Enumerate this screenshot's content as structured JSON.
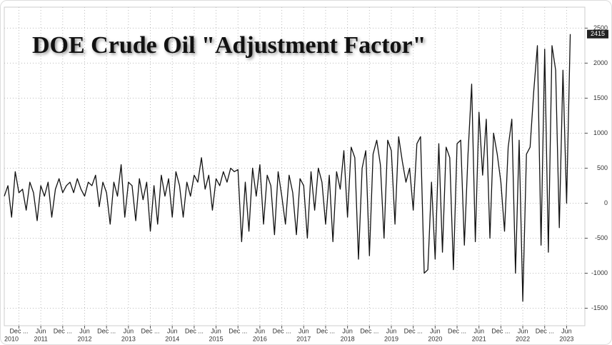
{
  "chart_data": {
    "type": "line",
    "title": "DOE Crude Oil \"Adjustment Factor\"",
    "x": [
      "2010-08",
      "2010-09",
      "2010-10",
      "2010-11",
      "2010-12",
      "2011-01",
      "2011-02",
      "2011-03",
      "2011-04",
      "2011-05",
      "2011-06",
      "2011-07",
      "2011-08",
      "2011-09",
      "2011-10",
      "2011-11",
      "2011-12",
      "2012-01",
      "2012-02",
      "2012-03",
      "2012-04",
      "2012-05",
      "2012-06",
      "2012-07",
      "2012-08",
      "2012-09",
      "2012-10",
      "2012-11",
      "2012-12",
      "2013-01",
      "2013-02",
      "2013-03",
      "2013-04",
      "2013-05",
      "2013-06",
      "2013-07",
      "2013-08",
      "2013-09",
      "2013-10",
      "2013-11",
      "2013-12",
      "2014-01",
      "2014-02",
      "2014-03",
      "2014-04",
      "2014-05",
      "2014-06",
      "2014-07",
      "2014-08",
      "2014-09",
      "2014-10",
      "2014-11",
      "2014-12",
      "2015-01",
      "2015-02",
      "2015-03",
      "2015-04",
      "2015-05",
      "2015-06",
      "2015-07",
      "2015-08",
      "2015-09",
      "2015-10",
      "2015-11",
      "2015-12",
      "2016-01",
      "2016-02",
      "2016-03",
      "2016-04",
      "2016-05",
      "2016-06",
      "2016-07",
      "2016-08",
      "2016-09",
      "2016-10",
      "2016-11",
      "2016-12",
      "2017-01",
      "2017-02",
      "2017-03",
      "2017-04",
      "2017-05",
      "2017-06",
      "2017-07",
      "2017-08",
      "2017-09",
      "2017-10",
      "2017-11",
      "2017-12",
      "2018-01",
      "2018-02",
      "2018-03",
      "2018-04",
      "2018-05",
      "2018-06",
      "2018-07",
      "2018-08",
      "2018-09",
      "2018-10",
      "2018-11",
      "2018-12",
      "2019-01",
      "2019-02",
      "2019-03",
      "2019-04",
      "2019-05",
      "2019-06",
      "2019-07",
      "2019-08",
      "2019-09",
      "2019-10",
      "2019-11",
      "2019-12",
      "2020-01",
      "2020-02",
      "2020-03",
      "2020-04",
      "2020-05",
      "2020-06",
      "2020-07",
      "2020-08",
      "2020-09",
      "2020-10",
      "2020-11",
      "2020-12",
      "2021-01",
      "2021-02",
      "2021-03",
      "2021-04",
      "2021-05",
      "2021-06",
      "2021-07",
      "2021-08",
      "2021-09",
      "2021-10",
      "2021-11",
      "2021-12",
      "2022-01",
      "2022-02",
      "2022-03",
      "2022-04",
      "2022-05",
      "2022-06",
      "2022-07",
      "2022-08",
      "2022-09",
      "2022-10",
      "2022-11",
      "2022-12",
      "2023-01",
      "2023-02",
      "2023-03",
      "2023-04",
      "2023-05",
      "2023-06",
      "2023-07"
    ],
    "values": [
      100,
      250,
      -200,
      450,
      150,
      200,
      -100,
      300,
      150,
      -250,
      250,
      100,
      300,
      -200,
      200,
      350,
      150,
      250,
      300,
      150,
      350,
      200,
      100,
      300,
      250,
      400,
      -50,
      300,
      150,
      -300,
      300,
      100,
      550,
      -200,
      300,
      250,
      -250,
      350,
      50,
      300,
      -400,
      250,
      -300,
      400,
      100,
      350,
      -200,
      450,
      250,
      -200,
      300,
      100,
      400,
      300,
      650,
      200,
      400,
      -100,
      350,
      250,
      450,
      300,
      500,
      450,
      480,
      -550,
      300,
      -400,
      500,
      100,
      550,
      -300,
      400,
      250,
      -450,
      450,
      100,
      -300,
      400,
      150,
      -450,
      350,
      250,
      -500,
      450,
      -100,
      500,
      300,
      -300,
      400,
      -550,
      450,
      200,
      750,
      -200,
      800,
      650,
      -800,
      500,
      750,
      -750,
      700,
      900,
      550,
      -500,
      900,
      750,
      -300,
      950,
      600,
      300,
      500,
      -100,
      850,
      950,
      -1000,
      -950,
      300,
      -800,
      850,
      -700,
      800,
      650,
      -950,
      850,
      900,
      -600,
      700,
      1700,
      -550,
      1300,
      400,
      1200,
      -500,
      1000,
      700,
      300,
      -400,
      800,
      1200,
      -1000,
      900,
      -1400,
      700,
      800,
      1600,
      2250,
      -600,
      2200,
      -700,
      2250,
      1900,
      -350,
      1900,
      0,
      2415
    ],
    "color": "#111111",
    "xlim": [
      "2010-08",
      "2023-11"
    ],
    "xticks": [
      {
        "value": "2010-12",
        "label": "Dec ..."
      },
      {
        "value": "2011-06",
        "label": "Jun"
      },
      {
        "value": "2011-12",
        "label": "Dec ..."
      },
      {
        "value": "2012-06",
        "label": "Jun"
      },
      {
        "value": "2012-12",
        "label": "Dec ..."
      },
      {
        "value": "2013-06",
        "label": "Jun"
      },
      {
        "value": "2013-12",
        "label": "Dec ..."
      },
      {
        "value": "2014-06",
        "label": "Jun"
      },
      {
        "value": "2014-12",
        "label": "Dec ..."
      },
      {
        "value": "2015-06",
        "label": "Jun"
      },
      {
        "value": "2015-12",
        "label": "Dec ..."
      },
      {
        "value": "2016-06",
        "label": "Jun"
      },
      {
        "value": "2016-12",
        "label": "Dec ..."
      },
      {
        "value": "2017-06",
        "label": "Jun"
      },
      {
        "value": "2017-12",
        "label": "Dec ..."
      },
      {
        "value": "2018-06",
        "label": "Jun"
      },
      {
        "value": "2018-12",
        "label": "Dec ..."
      },
      {
        "value": "2019-06",
        "label": "Jun"
      },
      {
        "value": "2019-12",
        "label": "Dec ..."
      },
      {
        "value": "2020-06",
        "label": "Jun"
      },
      {
        "value": "2020-12",
        "label": "Dec ..."
      },
      {
        "value": "2021-06",
        "label": "Jun"
      },
      {
        "value": "2021-12",
        "label": "Dec ..."
      },
      {
        "value": "2022-06",
        "label": "Jun"
      },
      {
        "value": "2022-12",
        "label": "Dec ..."
      },
      {
        "value": "2023-06",
        "label": "Jun"
      }
    ],
    "year_labels": [
      {
        "value": "2010-06",
        "label": "2010"
      },
      {
        "value": "2011-06",
        "label": "2011"
      },
      {
        "value": "2012-06",
        "label": "2012"
      },
      {
        "value": "2013-06",
        "label": "2013"
      },
      {
        "value": "2014-06",
        "label": "2014"
      },
      {
        "value": "2015-06",
        "label": "2015"
      },
      {
        "value": "2016-06",
        "label": "2016"
      },
      {
        "value": "2017-06",
        "label": "2017"
      },
      {
        "value": "2018-06",
        "label": "2018"
      },
      {
        "value": "2019-06",
        "label": "2019"
      },
      {
        "value": "2020-06",
        "label": "2020"
      },
      {
        "value": "2021-06",
        "label": "2021"
      },
      {
        "value": "2022-06",
        "label": "2022"
      },
      {
        "value": "2023-06",
        "label": "2023"
      }
    ],
    "ylim": [
      -1750,
      2800
    ],
    "yticks": [
      -1500,
      -1000,
      -500,
      0,
      500,
      1000,
      1500,
      2000,
      2500
    ],
    "grid": true
  }
}
